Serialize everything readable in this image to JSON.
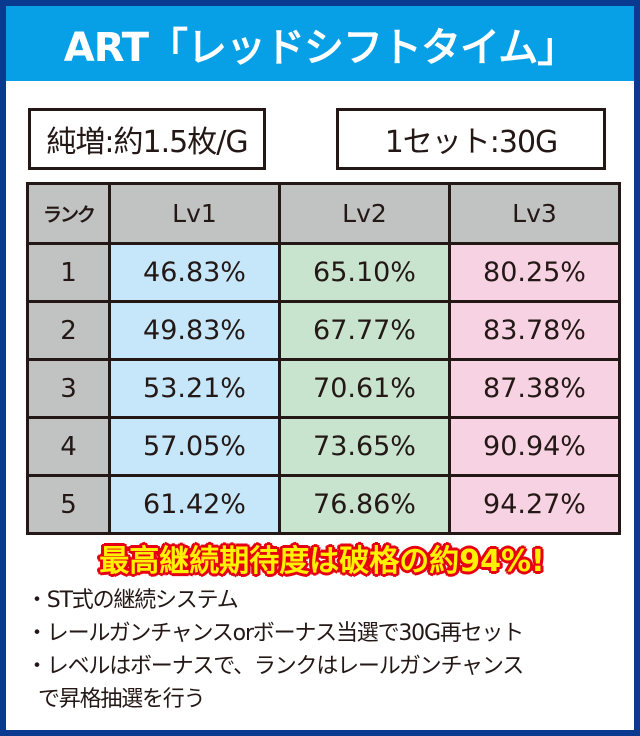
{
  "header": {
    "title": "ART「レッドシフトタイム」"
  },
  "specs": {
    "net_gain": "純増:約1.5枚/G",
    "set_length": "1セット:30G"
  },
  "table": {
    "headers": [
      "ランク",
      "Lv1",
      "Lv2",
      "Lv3"
    ],
    "rows": [
      {
        "rank": "1",
        "lv1": "46.83%",
        "lv2": "65.10%",
        "lv3": "80.25%"
      },
      {
        "rank": "2",
        "lv1": "49.83%",
        "lv2": "67.77%",
        "lv3": "83.78%"
      },
      {
        "rank": "3",
        "lv1": "53.21%",
        "lv2": "70.61%",
        "lv3": "87.38%"
      },
      {
        "rank": "4",
        "lv1": "57.05%",
        "lv2": "73.65%",
        "lv3": "90.94%"
      },
      {
        "rank": "5",
        "lv1": "61.42%",
        "lv2": "76.86%",
        "lv3": "94.27%"
      }
    ],
    "colors": {
      "header_bg": "#c1c2c2",
      "lv1_bg": "#c6e6f9",
      "lv2_bg": "#c8e4cf",
      "lv3_bg": "#f7d2e2"
    }
  },
  "highlight": {
    "text": "最高継続期待度は破格の約94%!",
    "fill_color": "#fff100",
    "outline_color": "#e60012"
  },
  "notes": [
    "・ST式の継続システム",
    "・レールガンチャンスorボーナス当選で30G再セット",
    "・レベルはボーナスで、ランクはレールガンチャンス",
    "で昇格抽選を行う"
  ],
  "colors": {
    "frame": "#0a3a8f",
    "header_bg": "#07a0e6"
  }
}
